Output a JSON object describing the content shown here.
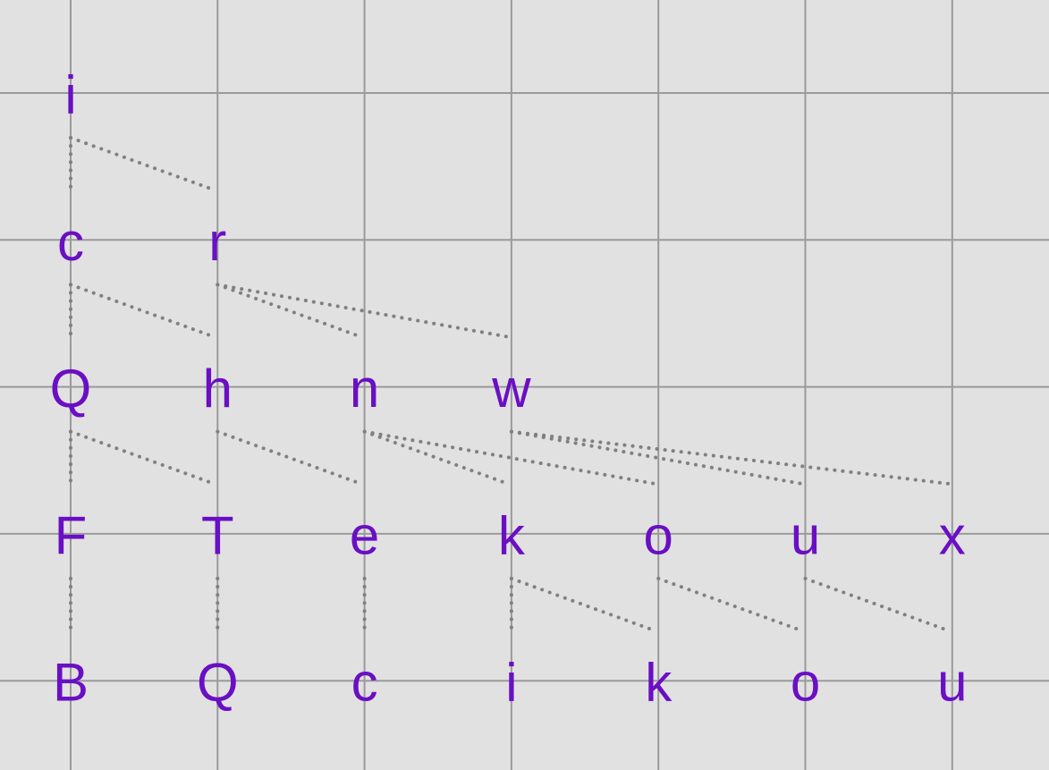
{
  "diagram": {
    "colors": {
      "background": "#e1e1e1",
      "grid": "#9a9a9a",
      "label": "#6a0fc4",
      "edge": "#808080"
    },
    "rows": [
      [
        "i"
      ],
      [
        "c",
        "r"
      ],
      [
        "Q",
        "h",
        "n",
        "w"
      ],
      [
        "F",
        "T",
        "e",
        "k",
        "o",
        "u",
        "x"
      ],
      [
        "B",
        "Q",
        "c",
        "i",
        "k",
        "o",
        "u"
      ]
    ],
    "edges": [
      [
        [
          0,
          0
        ],
        [
          1,
          0
        ]
      ],
      [
        [
          0,
          0
        ],
        [
          1,
          1
        ]
      ],
      [
        [
          1,
          0
        ],
        [
          2,
          0
        ]
      ],
      [
        [
          1,
          0
        ],
        [
          2,
          1
        ]
      ],
      [
        [
          1,
          1
        ],
        [
          2,
          2
        ]
      ],
      [
        [
          1,
          1
        ],
        [
          2,
          3
        ]
      ],
      [
        [
          2,
          0
        ],
        [
          3,
          0
        ]
      ],
      [
        [
          2,
          0
        ],
        [
          3,
          1
        ]
      ],
      [
        [
          2,
          1
        ],
        [
          3,
          2
        ]
      ],
      [
        [
          2,
          2
        ],
        [
          3,
          3
        ]
      ],
      [
        [
          2,
          2
        ],
        [
          3,
          4
        ]
      ],
      [
        [
          2,
          3
        ],
        [
          3,
          5
        ]
      ],
      [
        [
          2,
          3
        ],
        [
          3,
          6
        ]
      ],
      [
        [
          3,
          0
        ],
        [
          4,
          0
        ]
      ],
      [
        [
          3,
          1
        ],
        [
          4,
          1
        ]
      ],
      [
        [
          3,
          2
        ],
        [
          4,
          2
        ]
      ],
      [
        [
          3,
          3
        ],
        [
          4,
          3
        ]
      ],
      [
        [
          3,
          3
        ],
        [
          4,
          4
        ]
      ],
      [
        [
          3,
          4
        ],
        [
          4,
          5
        ]
      ],
      [
        [
          3,
          5
        ],
        [
          4,
          6
        ]
      ]
    ]
  }
}
